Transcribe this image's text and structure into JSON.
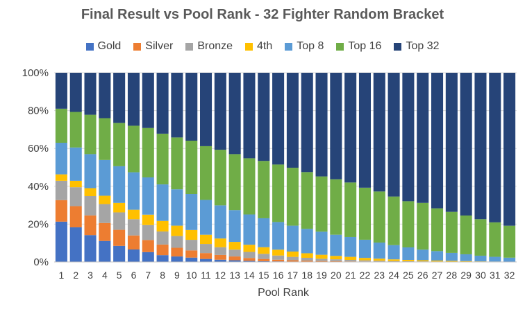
{
  "chart_data": {
    "type": "bar",
    "stacked": true,
    "title": "Final Result vs Pool Rank - 32 Fighter Random Bracket",
    "xlabel": "Pool Rank",
    "ylabel": "",
    "ylim": [
      0,
      100
    ],
    "y_ticks": [
      "0%",
      "20%",
      "40%",
      "60%",
      "80%",
      "100%"
    ],
    "grid": true,
    "legend_position": "top",
    "categories": [
      "1",
      "2",
      "3",
      "4",
      "5",
      "6",
      "7",
      "8",
      "9",
      "10",
      "11",
      "12",
      "13",
      "14",
      "15",
      "16",
      "17",
      "18",
      "19",
      "20",
      "21",
      "22",
      "23",
      "24",
      "25",
      "26",
      "27",
      "28",
      "29",
      "30",
      "31",
      "32"
    ],
    "series": [
      {
        "name": "Gold",
        "color": "#4472C4",
        "values": [
          21.3,
          18.3,
          14.2,
          11.1,
          8.5,
          6.6,
          5.2,
          3.6,
          2.9,
          2.3,
          1.6,
          1.2,
          0.9,
          0.6,
          0.4,
          0.3,
          0.2,
          0.2,
          0.1,
          0.1,
          0.05,
          0.05,
          0.04,
          0.03,
          0.02,
          0.02,
          0.01,
          0.01,
          0.01,
          0.01,
          0.01,
          0.01
        ]
      },
      {
        "name": "Silver",
        "color": "#ED7D31",
        "values": [
          11.4,
          11.2,
          10.4,
          9.5,
          8.5,
          7.4,
          6.4,
          5.6,
          4.6,
          3.8,
          3.1,
          2.5,
          2.0,
          1.5,
          1.2,
          0.9,
          0.7,
          0.5,
          0.4,
          0.3,
          0.25,
          0.2,
          0.15,
          0.1,
          0.1,
          0.08,
          0.06,
          0.05,
          0.04,
          0.03,
          0.02,
          0.02
        ]
      },
      {
        "name": "Bronze",
        "color": "#A5A5A5",
        "values": [
          10.2,
          10.0,
          10.2,
          10.0,
          9.2,
          8.6,
          7.9,
          6.9,
          6.2,
          5.6,
          4.8,
          4.1,
          3.6,
          3.2,
          2.7,
          2.2,
          1.8,
          1.5,
          1.2,
          1.0,
          0.8,
          0.6,
          0.45,
          0.35,
          0.28,
          0.22,
          0.17,
          0.13,
          0.1,
          0.07,
          0.05,
          0.04
        ]
      },
      {
        "name": "4th",
        "color": "#FFC000",
        "values": [
          3.4,
          3.4,
          4.2,
          4.4,
          5.0,
          5.0,
          5.5,
          5.6,
          5.5,
          5.2,
          4.9,
          4.6,
          4.1,
          3.8,
          3.5,
          3.1,
          2.8,
          2.4,
          2.1,
          1.8,
          1.6,
          1.3,
          1.1,
          0.9,
          0.7,
          0.6,
          0.5,
          0.4,
          0.3,
          0.2,
          0.15,
          0.1
        ]
      },
      {
        "name": "Top 8",
        "color": "#5B9BD5",
        "values": [
          16.7,
          17.6,
          18.0,
          18.9,
          19.4,
          19.8,
          19.7,
          19.3,
          19.2,
          19.0,
          18.4,
          17.5,
          16.8,
          16.0,
          15.3,
          14.6,
          13.7,
          12.9,
          12.2,
          11.2,
          10.5,
          9.6,
          8.5,
          7.5,
          6.6,
          5.6,
          5.0,
          4.2,
          3.6,
          3.0,
          2.5,
          2.1
        ]
      },
      {
        "name": "Top 16",
        "color": "#70AD47",
        "values": [
          18.0,
          18.8,
          20.8,
          22.1,
          22.9,
          24.6,
          26.1,
          26.8,
          27.4,
          28.2,
          28.4,
          29.4,
          29.6,
          29.7,
          30.3,
          30.4,
          30.6,
          30.0,
          29.2,
          29.3,
          28.8,
          27.5,
          27.0,
          25.7,
          24.4,
          24.7,
          22.6,
          21.7,
          20.5,
          19.3,
          18.2,
          16.9
        ]
      },
      {
        "name": "Top 32",
        "color": "#264478",
        "values": [
          19.0,
          20.7,
          22.2,
          24.0,
          26.5,
          28.0,
          29.2,
          32.2,
          34.2,
          35.9,
          38.8,
          40.7,
          43.0,
          45.2,
          46.6,
          48.5,
          50.2,
          52.5,
          54.8,
          56.3,
          58.0,
          60.8,
          62.8,
          65.4,
          67.9,
          68.8,
          71.7,
          73.5,
          75.5,
          77.4,
          79.1,
          80.8
        ]
      }
    ]
  }
}
